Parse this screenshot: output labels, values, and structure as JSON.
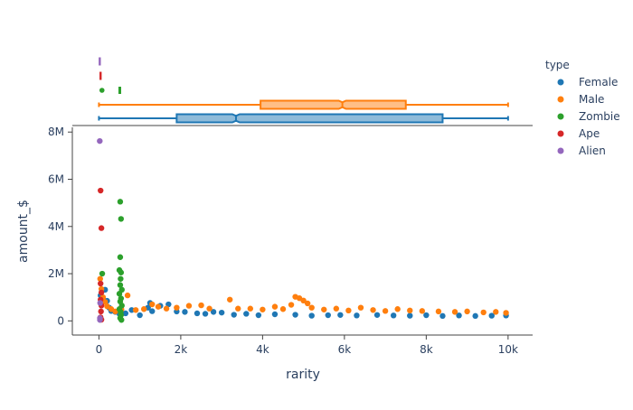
{
  "chart_data": {
    "type": "scatter",
    "title": "",
    "xlabel": "rarity",
    "ylabel": "amount_$",
    "xlim": [
      -650,
      10600
    ],
    "ylim": [
      -600000,
      8200000
    ],
    "x_ticks": [
      0,
      2000,
      4000,
      6000,
      8000,
      10000
    ],
    "x_tick_labels": [
      "0",
      "2k",
      "4k",
      "6k",
      "8k",
      "10k"
    ],
    "y_ticks": [
      0,
      2000000,
      4000000,
      6000000,
      8000000
    ],
    "y_tick_labels": [
      "0",
      "2M",
      "4M",
      "6M",
      "8M"
    ],
    "grid": false,
    "legend": {
      "title": "type",
      "placement": "right"
    },
    "marginal_x": "box",
    "series": [
      {
        "name": "Female",
        "color": "#1f77b4",
        "box": {
          "min": 0,
          "q1": 1900,
          "median": 3350,
          "q3": 8400,
          "max": 10000
        },
        "points": [
          [
            40,
            1080000
          ],
          [
            100,
            900000
          ],
          [
            150,
            1320000
          ],
          [
            200,
            850000
          ],
          [
            250,
            560000
          ],
          [
            300,
            420000
          ],
          [
            400,
            380000
          ],
          [
            500,
            300000
          ],
          [
            650,
            320000
          ],
          [
            800,
            460000
          ],
          [
            1000,
            240000
          ],
          [
            1200,
            560000
          ],
          [
            1250,
            760000
          ],
          [
            1300,
            410000
          ],
          [
            1500,
            640000
          ],
          [
            1700,
            700000
          ],
          [
            1900,
            400000
          ],
          [
            2100,
            380000
          ],
          [
            2400,
            320000
          ],
          [
            2600,
            300000
          ],
          [
            2800,
            380000
          ],
          [
            3000,
            350000
          ],
          [
            3300,
            260000
          ],
          [
            3600,
            300000
          ],
          [
            3900,
            240000
          ],
          [
            4300,
            280000
          ],
          [
            4800,
            260000
          ],
          [
            5200,
            220000
          ],
          [
            5600,
            240000
          ],
          [
            5900,
            250000
          ],
          [
            6300,
            230000
          ],
          [
            6800,
            250000
          ],
          [
            7200,
            230000
          ],
          [
            7600,
            220000
          ],
          [
            8000,
            240000
          ],
          [
            8400,
            210000
          ],
          [
            8800,
            230000
          ],
          [
            9200,
            210000
          ],
          [
            9600,
            220000
          ],
          [
            9950,
            230000
          ]
        ]
      },
      {
        "name": "Male",
        "color": "#ff7f0e",
        "box": {
          "min": 0,
          "q1": 3950,
          "median": 5950,
          "q3": 7500,
          "max": 10000
        },
        "points": [
          [
            30,
            1780000
          ],
          [
            60,
            1350000
          ],
          [
            100,
            1000000
          ],
          [
            150,
            800000
          ],
          [
            200,
            620000
          ],
          [
            300,
            500000
          ],
          [
            400,
            400000
          ],
          [
            550,
            480000
          ],
          [
            700,
            1080000
          ],
          [
            900,
            460000
          ],
          [
            1100,
            500000
          ],
          [
            1300,
            700000
          ],
          [
            1450,
            600000
          ],
          [
            1650,
            520000
          ],
          [
            1900,
            560000
          ],
          [
            2200,
            640000
          ],
          [
            2500,
            660000
          ],
          [
            2700,
            520000
          ],
          [
            3200,
            900000
          ],
          [
            3400,
            520000
          ],
          [
            3700,
            520000
          ],
          [
            4000,
            480000
          ],
          [
            4300,
            600000
          ],
          [
            4500,
            500000
          ],
          [
            4700,
            680000
          ],
          [
            4800,
            1020000
          ],
          [
            4900,
            960000
          ],
          [
            5000,
            860000
          ],
          [
            5100,
            740000
          ],
          [
            5200,
            560000
          ],
          [
            5500,
            480000
          ],
          [
            5800,
            520000
          ],
          [
            6100,
            440000
          ],
          [
            6400,
            560000
          ],
          [
            6700,
            460000
          ],
          [
            7000,
            420000
          ],
          [
            7300,
            500000
          ],
          [
            7600,
            440000
          ],
          [
            7900,
            420000
          ],
          [
            8300,
            400000
          ],
          [
            8700,
            380000
          ],
          [
            9000,
            400000
          ],
          [
            9400,
            360000
          ],
          [
            9700,
            380000
          ],
          [
            9950,
            340000
          ]
        ]
      },
      {
        "name": "Zombie",
        "color": "#2ca02c",
        "box": {
          "min": 30,
          "q1": 510,
          "median": 530,
          "q3": 545,
          "max": 560
        },
        "points": [
          [
            80,
            2000000
          ],
          [
            520,
            5050000
          ],
          [
            540,
            4320000
          ],
          [
            520,
            2700000
          ],
          [
            500,
            2150000
          ],
          [
            540,
            2050000
          ],
          [
            530,
            1780000
          ],
          [
            520,
            1520000
          ],
          [
            560,
            1320000
          ],
          [
            500,
            1150000
          ],
          [
            540,
            950000
          ],
          [
            520,
            820000
          ],
          [
            560,
            650000
          ],
          [
            500,
            500000
          ],
          [
            530,
            380000
          ],
          [
            540,
            250000
          ],
          [
            520,
            120000
          ],
          [
            550,
            40000
          ]
        ]
      },
      {
        "name": "Ape",
        "color": "#d62728",
        "box": {
          "min": 20,
          "q1": 40,
          "median": 50,
          "q3": 60,
          "max": 80
        },
        "points": [
          [
            40,
            5520000
          ],
          [
            60,
            3930000
          ],
          [
            40,
            1580000
          ],
          [
            60,
            1200000
          ],
          [
            40,
            900000
          ],
          [
            60,
            650000
          ],
          [
            50,
            400000
          ],
          [
            40,
            150000
          ],
          [
            60,
            50000
          ]
        ]
      },
      {
        "name": "Alien",
        "color": "#9467bd",
        "box": {
          "min": 10,
          "q1": 20,
          "median": 25,
          "q3": 30,
          "max": 40
        },
        "points": [
          [
            20,
            7620000
          ],
          [
            30,
            760000
          ],
          [
            25,
            120000
          ],
          [
            25,
            40000
          ]
        ]
      }
    ]
  }
}
